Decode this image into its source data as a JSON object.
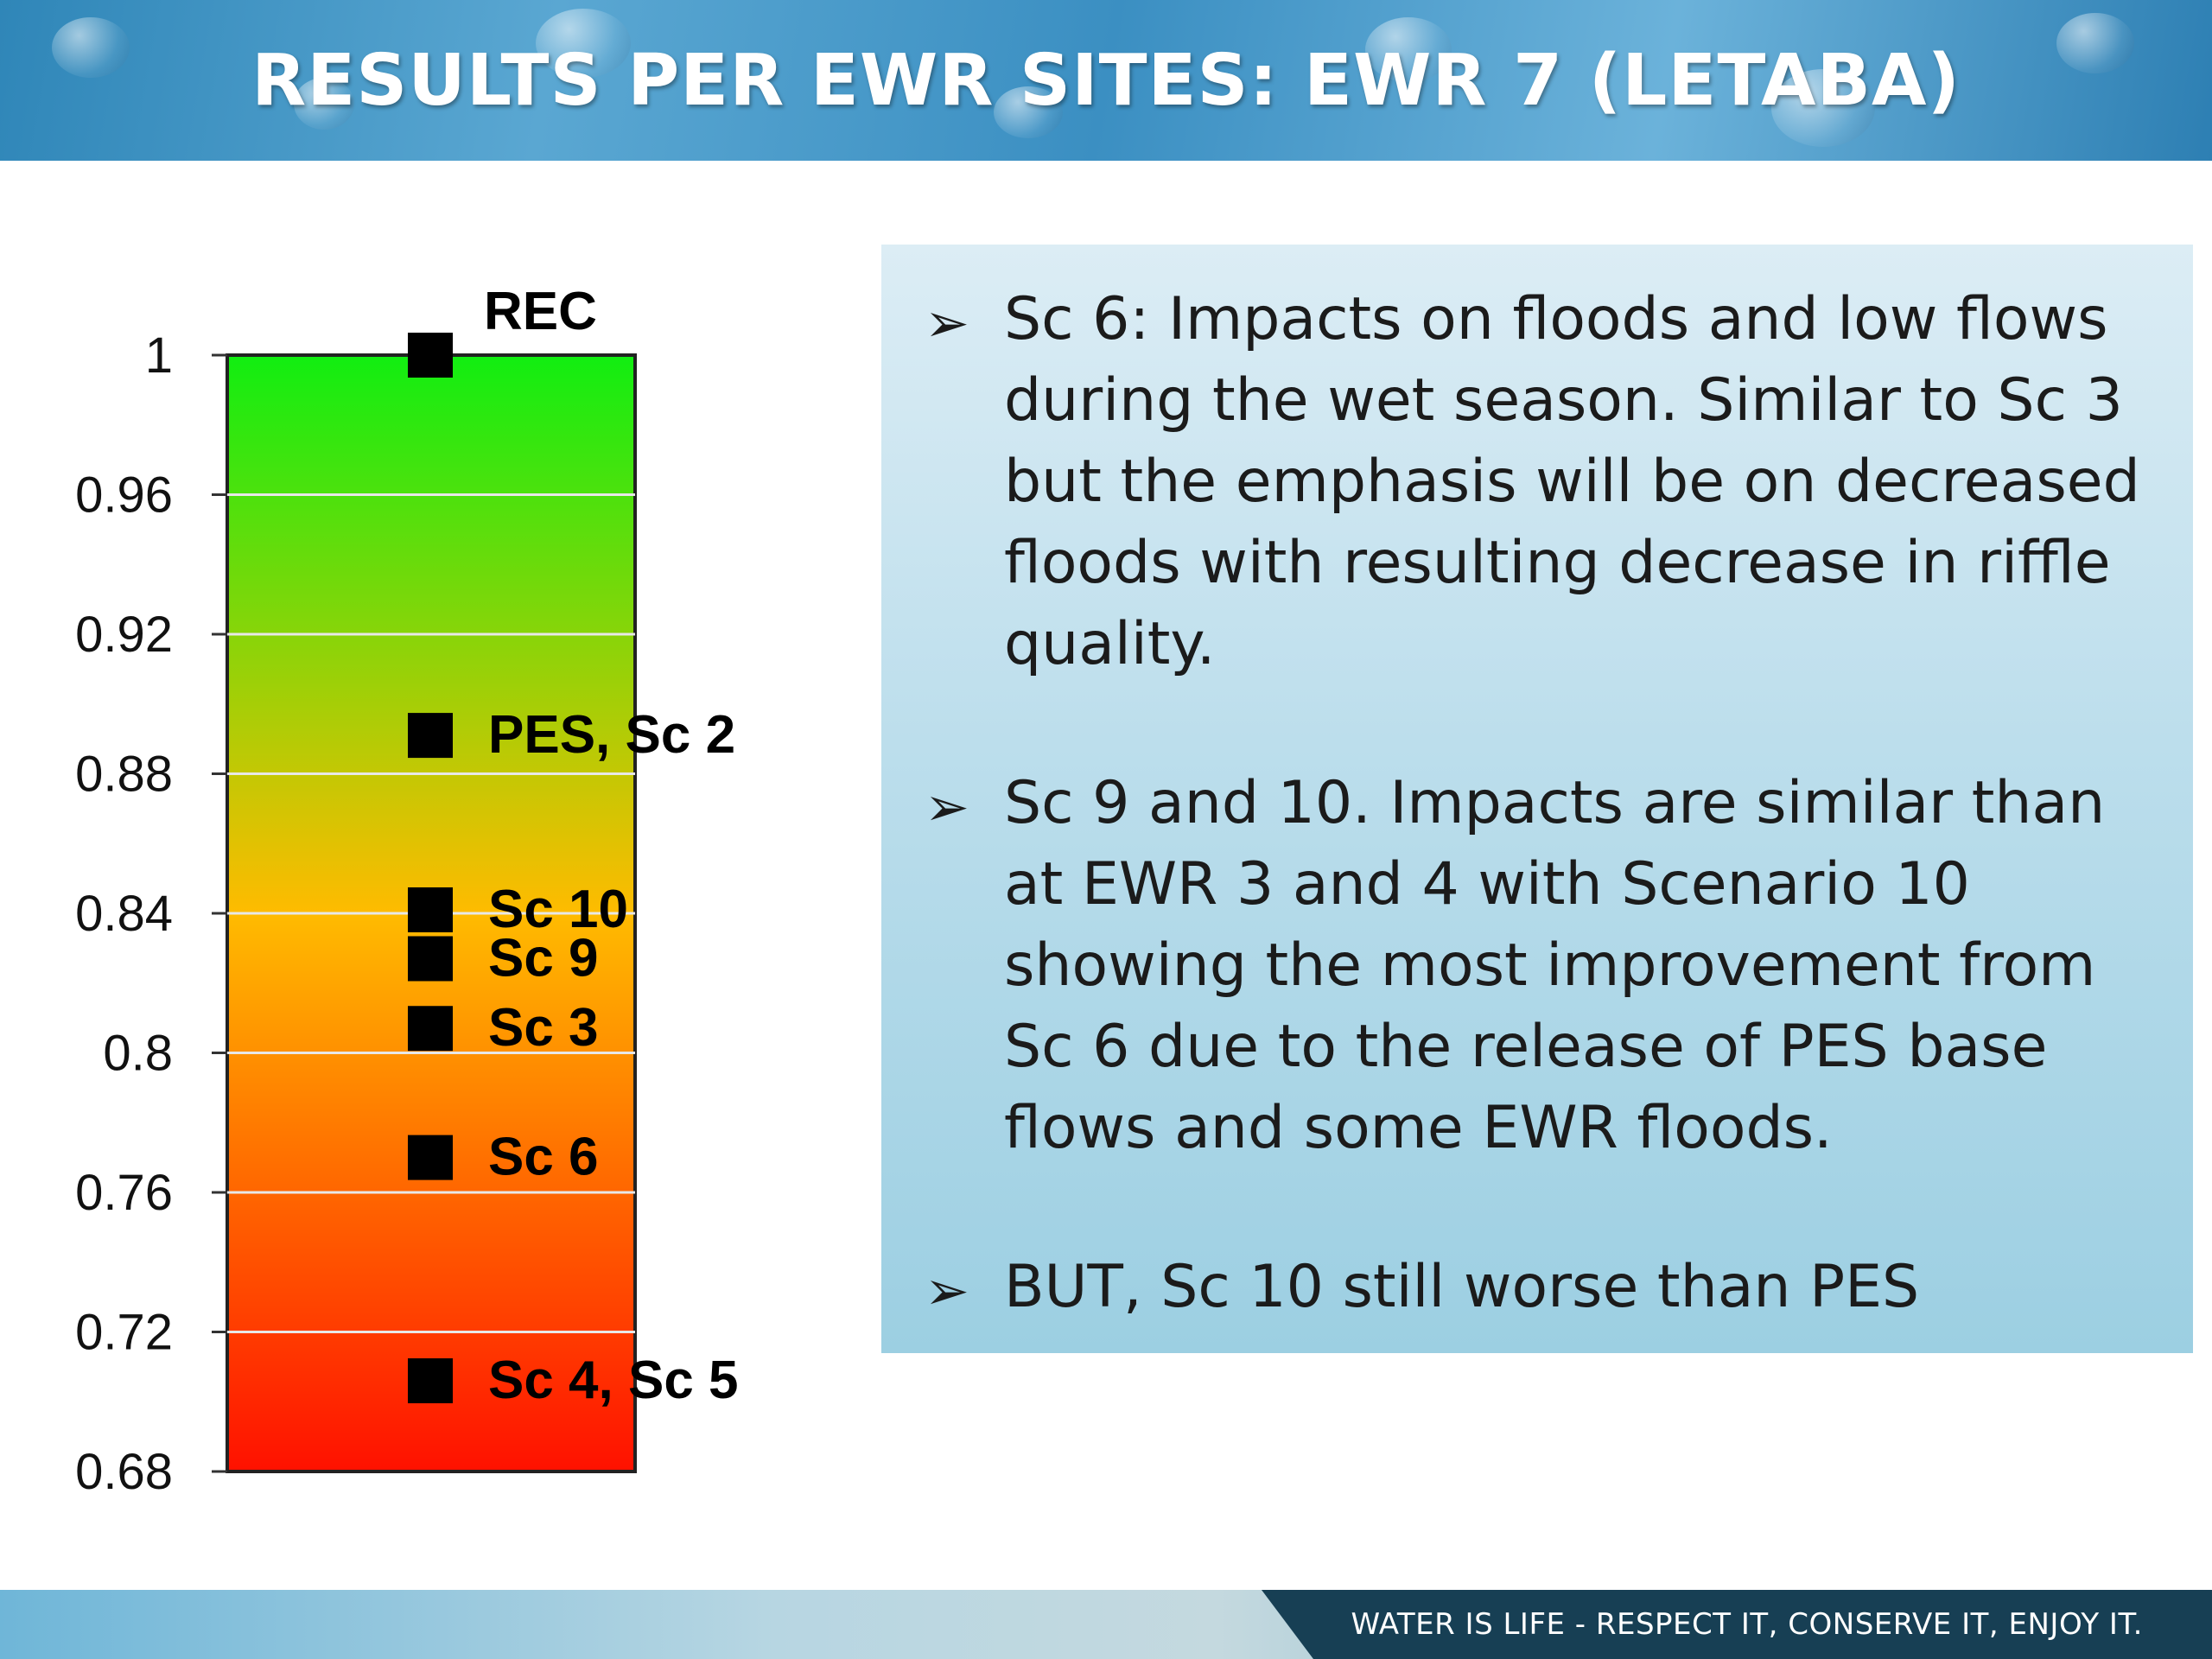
{
  "header": {
    "title": "RESULTS PER EWR SITES: EWR 7 (LETABA)"
  },
  "chart_data": {
    "type": "scatter",
    "ylim": [
      0.68,
      1.0
    ],
    "yticks": [
      "1",
      "0.96",
      "0.92",
      "0.88",
      "0.84",
      "0.8",
      "0.76",
      "0.72",
      "0.68"
    ],
    "ytick_values": [
      1.0,
      0.96,
      0.92,
      0.88,
      0.84,
      0.8,
      0.76,
      0.72,
      0.68
    ],
    "grid": true,
    "background_gradient": [
      "#11ee11",
      "#ffbb00",
      "#ff1100"
    ],
    "marker_color": "#000000",
    "points": [
      {
        "label": "REC",
        "y": 1.0
      },
      {
        "label": "PES, Sc 2",
        "y": 0.891
      },
      {
        "label": "Sc 10",
        "y": 0.841
      },
      {
        "label": "Sc 9",
        "y": 0.827
      },
      {
        "label": "Sc 3",
        "y": 0.807
      },
      {
        "label": "Sc 6",
        "y": 0.77
      },
      {
        "label": "Sc 4, Sc 5",
        "y": 0.706
      }
    ]
  },
  "text_panel": {
    "bullets": [
      "Sc 6: Impacts on floods and low flows during the wet season. Similar to Sc 3 but the emphasis will be on decreased floods with resulting decrease in riffle quality.",
      "Sc 9 and 10. Impacts are similar than at EWR 3 and 4 with Scenario 10 showing the most improvement from Sc 6 due to the release of PES base flows and some EWR floods.",
      "BUT, Sc 10 still worse than PES"
    ],
    "bullet_icon": "arrow-bullet-icon"
  },
  "footer": {
    "tagline": "WATER IS LIFE - RESPECT IT, CONSERVE IT, ENJOY IT."
  }
}
